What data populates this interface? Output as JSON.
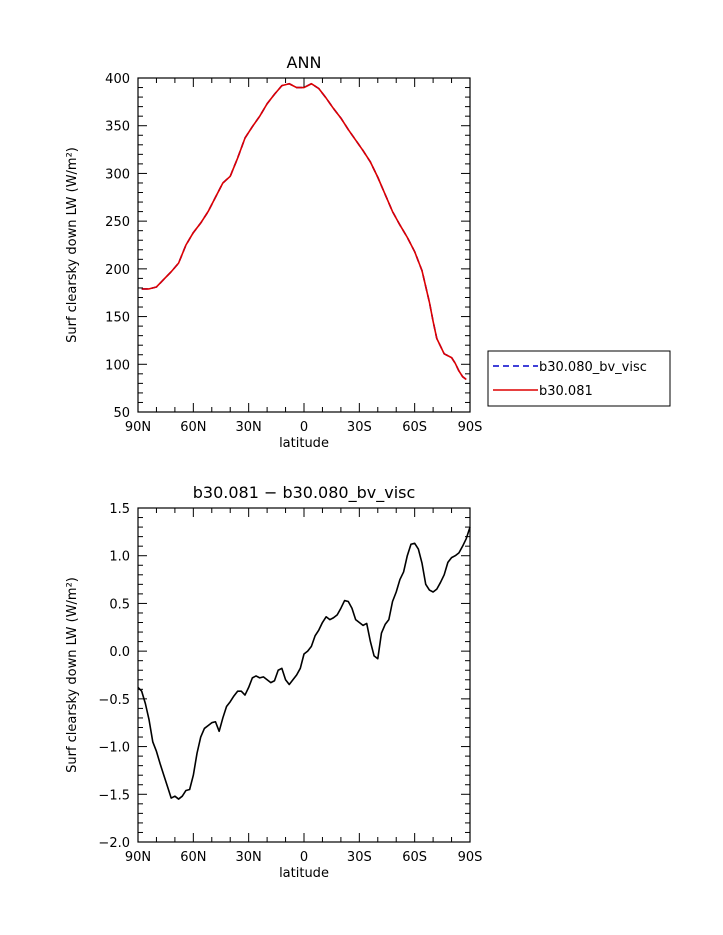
{
  "chart_data": [
    {
      "type": "line",
      "title": "ANN",
      "xlabel": "latitude",
      "ylabel": "Surf clearsky down LW (W/m²)",
      "xlim": [
        90,
        -90
      ],
      "ylim": [
        50,
        400
      ],
      "xticks": [
        90,
        60,
        30,
        0,
        -30,
        -60,
        -90
      ],
      "xtick_labels": [
        "90N",
        "60N",
        "30N",
        "0",
        "30S",
        "60S",
        "90S"
      ],
      "yticks": [
        50,
        100,
        150,
        200,
        250,
        300,
        350,
        400
      ],
      "ytick_labels": [
        "50",
        "100",
        "150",
        "200",
        "250",
        "300",
        "350",
        "400"
      ],
      "legend_position": "right",
      "series": [
        {
          "name": "b30.080_bv_visc",
          "color": "#0000cc",
          "style": "dashed",
          "x": [
            88,
            84,
            80,
            76,
            72,
            68,
            64,
            60,
            56,
            52,
            48,
            44,
            40,
            36,
            32,
            28,
            24,
            20,
            16,
            12,
            8,
            4,
            0,
            -4,
            -8,
            -12,
            -16,
            -20,
            -24,
            -28,
            -32,
            -36,
            -40,
            -44,
            -48,
            -52,
            -56,
            -60,
            -64,
            -68,
            -70,
            -72,
            -76,
            -80,
            -82,
            -84,
            -86,
            -88
          ],
          "y": [
            179,
            179,
            181,
            189,
            197,
            206,
            225,
            238,
            248,
            260,
            275,
            290,
            297,
            316,
            337,
            349,
            360,
            373,
            383,
            392,
            394,
            390,
            390,
            394,
            389,
            379,
            368,
            358,
            346,
            335,
            324,
            312,
            296,
            278,
            260,
            246,
            233,
            218,
            198,
            165,
            145,
            127,
            111,
            107,
            101,
            93,
            87,
            84
          ]
        },
        {
          "name": "b30.081",
          "color": "#dd0000",
          "style": "solid",
          "x": [
            88,
            84,
            80,
            76,
            72,
            68,
            64,
            60,
            56,
            52,
            48,
            44,
            40,
            36,
            32,
            28,
            24,
            20,
            16,
            12,
            8,
            4,
            0,
            -4,
            -8,
            -12,
            -16,
            -20,
            -24,
            -28,
            -32,
            -36,
            -40,
            -44,
            -48,
            -52,
            -56,
            -60,
            -64,
            -68,
            -70,
            -72,
            -76,
            -80,
            -82,
            -84,
            -86,
            -88
          ],
          "y": [
            179,
            179,
            181,
            189,
            197,
            206,
            225,
            238,
            248,
            260,
            275,
            290,
            297,
            316,
            337,
            349,
            360,
            373,
            383,
            392,
            394,
            390,
            390,
            394,
            389,
            379,
            368,
            358,
            346,
            335,
            324,
            312,
            296,
            278,
            260,
            246,
            233,
            218,
            198,
            165,
            145,
            127,
            111,
            107,
            101,
            93,
            87,
            84
          ]
        }
      ]
    },
    {
      "type": "line",
      "title": "b30.081 − b30.080_bv_visc",
      "xlabel": "latitude",
      "ylabel": "Surf clearsky down LW (W/m²)",
      "xlim": [
        90,
        -90
      ],
      "ylim": [
        -2.0,
        1.5
      ],
      "xticks": [
        90,
        60,
        30,
        0,
        -30,
        -60,
        -90
      ],
      "xtick_labels": [
        "90N",
        "60N",
        "30N",
        "0",
        "30S",
        "60S",
        "90S"
      ],
      "yticks": [
        -2.0,
        -1.5,
        -1.0,
        -0.5,
        0.0,
        0.5,
        1.0,
        1.5
      ],
      "ytick_labels": [
        "−2.0",
        "−1.5",
        "−1.0",
        "−0.5",
        "0.0",
        "0.5",
        "1.0",
        "1.5"
      ],
      "series": [
        {
          "color": "#000000",
          "style": "solid",
          "x": [
            90,
            88,
            86,
            84,
            82,
            80,
            78,
            76,
            74,
            72,
            70,
            68,
            66,
            64,
            62,
            60,
            58,
            56,
            54,
            52,
            50,
            48,
            46,
            44,
            42,
            40,
            38,
            36,
            34,
            32,
            30,
            28,
            26,
            24,
            22,
            20,
            18,
            16,
            14,
            12,
            10,
            8,
            6,
            4,
            2,
            0,
            -2,
            -4,
            -6,
            -8,
            -10,
            -12,
            -14,
            -16,
            -18,
            -20,
            -22,
            -24,
            -26,
            -28,
            -30,
            -32,
            -34,
            -36,
            -38,
            -40,
            -42,
            -44,
            -46,
            -48,
            -50,
            -52,
            -54,
            -56,
            -58,
            -60,
            -62,
            -64,
            -66,
            -68,
            -70,
            -72,
            -74,
            -76,
            -78,
            -80,
            -82,
            -84,
            -86,
            -88,
            -90
          ],
          "y": [
            -0.38,
            -0.42,
            -0.55,
            -0.72,
            -0.95,
            -1.05,
            -1.18,
            -1.3,
            -1.42,
            -1.54,
            -1.52,
            -1.55,
            -1.52,
            -1.46,
            -1.45,
            -1.3,
            -1.07,
            -0.9,
            -0.81,
            -0.78,
            -0.75,
            -0.74,
            -0.84,
            -0.7,
            -0.58,
            -0.53,
            -0.47,
            -0.42,
            -0.42,
            -0.46,
            -0.38,
            -0.28,
            -0.26,
            -0.28,
            -0.27,
            -0.3,
            -0.33,
            -0.31,
            -0.2,
            -0.18,
            -0.3,
            -0.35,
            -0.3,
            -0.25,
            -0.18,
            -0.03,
            0.0,
            0.05,
            0.16,
            0.22,
            0.3,
            0.36,
            0.33,
            0.35,
            0.38,
            0.45,
            0.53,
            0.52,
            0.45,
            0.33,
            0.3,
            0.27,
            0.29,
            0.1,
            -0.05,
            -0.08,
            0.19,
            0.28,
            0.33,
            0.52,
            0.62,
            0.75,
            0.83,
            1.0,
            1.12,
            1.13,
            1.07,
            0.92,
            0.7,
            0.64,
            0.62,
            0.65,
            0.72,
            0.8,
            0.93,
            0.98,
            1.0,
            1.03,
            1.1,
            1.18,
            1.3
          ]
        }
      ]
    }
  ]
}
